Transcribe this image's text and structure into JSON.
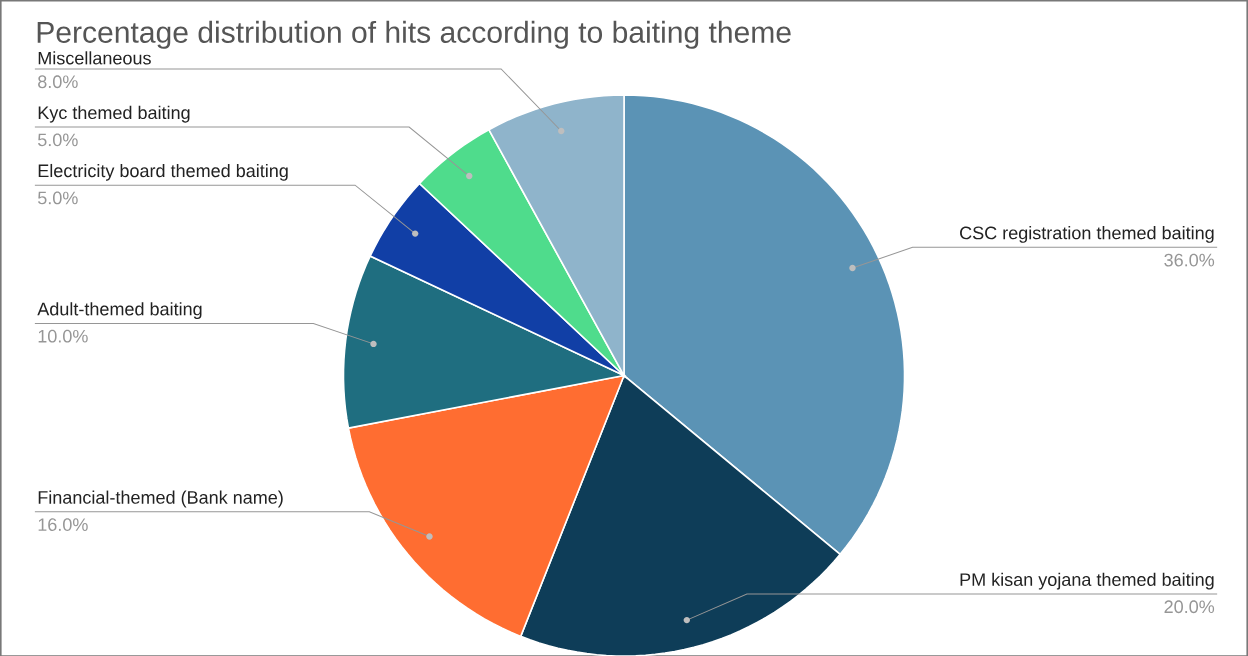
{
  "chart_data": {
    "type": "pie",
    "title": "Percentage distribution of hits according to baiting theme",
    "categories": [
      "CSC registration themed baiting",
      "PM kisan yojana themed baiting",
      "Financial-themed (Bank name)",
      "Adult-themed baiting",
      "Electricity board themed baiting",
      "Kyc themed baiting",
      "Miscellaneous"
    ],
    "values": [
      36,
      20,
      16,
      10,
      5,
      5,
      8
    ],
    "value_labels": [
      "36.0%",
      "20.0%",
      "16.0%",
      "10.0%",
      "5.0%",
      "5.0%",
      "8.0%"
    ],
    "colors": [
      "#5b93b5",
      "#0e3d58",
      "#ff6d31",
      "#1f6e80",
      "#113fa6",
      "#4fdc8c",
      "#8fb4cb"
    ]
  }
}
